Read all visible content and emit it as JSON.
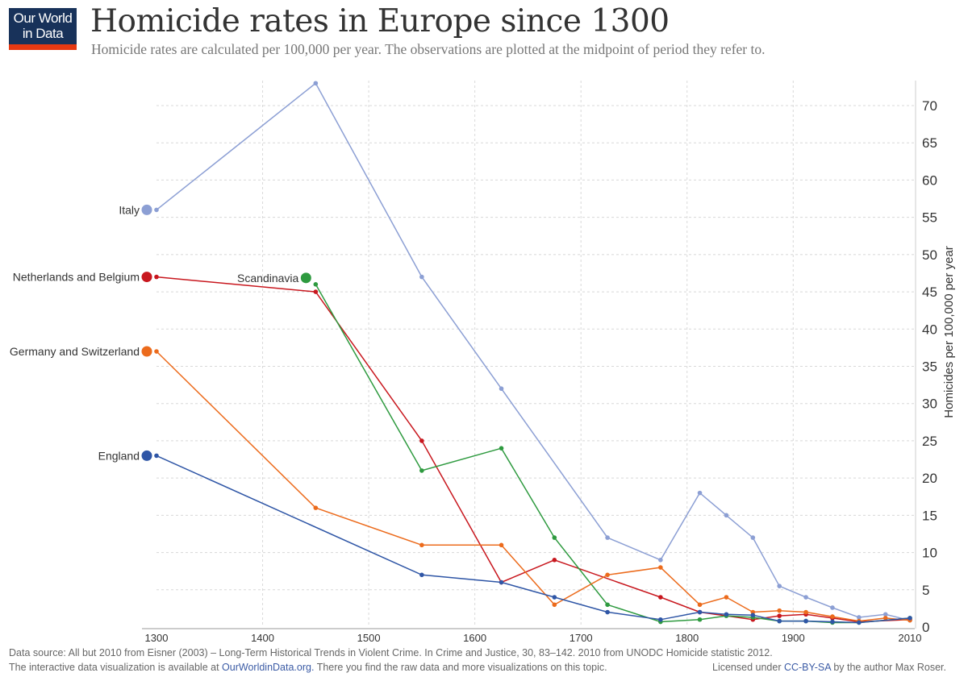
{
  "logo": {
    "line1": "Our World",
    "line2": "in Data"
  },
  "header": {
    "title": "Homicide rates in Europe since 1300",
    "subtitle": "Homicide rates are calculated per 100,000 per year. The observations are plotted at the midpoint of period they refer to."
  },
  "footer": {
    "source": "Data source: All but 2010 from Eisner (2003) – Long-Term Historical Trends in Violent Crime. In Crime and Justice, 30, 83–142. 2010 from UNODC Homicide statistic 2012.",
    "interactive_prefix": "The interactive data visualization is available at ",
    "interactive_link": "OurWorldinData.org.",
    "interactive_suffix": " There you find the raw data and more visualizations on this topic.",
    "license_prefix": "Licensed under ",
    "license_link": "CC-BY-SA",
    "license_suffix": " by the author Max Roser."
  },
  "chart_data": {
    "type": "line",
    "title": "Homicide rates in Europe since 1300",
    "xlabel": "",
    "ylabel": "Homicides per 100,000 per year",
    "xlim": [
      1300,
      2010
    ],
    "ylim": [
      0,
      70
    ],
    "x_ticks": [
      1300,
      1400,
      1500,
      1600,
      1700,
      1800,
      1900,
      2010
    ],
    "y_ticks": [
      0,
      5,
      10,
      15,
      20,
      25,
      30,
      35,
      40,
      45,
      50,
      55,
      60,
      65,
      70
    ],
    "y_axis_side": "right",
    "grid": true,
    "legend": "inline labels at series start",
    "series": [
      {
        "name": "Italy",
        "color": "#8c9fd4",
        "x": [
          1300,
          1450,
          1550,
          1625,
          1725,
          1775,
          1812,
          1837,
          1862,
          1887,
          1912,
          1937,
          1962,
          1987,
          2010
        ],
        "y": [
          56,
          73,
          47,
          32,
          12,
          9,
          18,
          15,
          12,
          5.5,
          4,
          2.6,
          1.3,
          1.7,
          0.9
        ]
      },
      {
        "name": "Netherlands and Belgium",
        "color": "#c8171e",
        "x": [
          1300,
          1450,
          1550,
          1625,
          1675,
          1775,
          1812,
          1862,
          1887,
          1912,
          1937,
          1962,
          2010
        ],
        "y": [
          47,
          45,
          25,
          6,
          9,
          4,
          2,
          1,
          1.5,
          1.7,
          1.2,
          0.7,
          1.0
        ]
      },
      {
        "name": "Scandinavia",
        "color": "#2e9a3f",
        "x": [
          1450,
          1550,
          1625,
          1675,
          1725,
          1775,
          1812,
          1837,
          1862,
          1887,
          1912,
          1937,
          1962,
          2010
        ],
        "y": [
          46,
          21,
          24,
          12,
          3,
          0.7,
          1.0,
          1.5,
          1.3,
          0.8,
          0.8,
          0.6,
          0.6,
          1.2
        ]
      },
      {
        "name": "Germany and Switzerland",
        "color": "#ec6b1c",
        "x": [
          1300,
          1450,
          1550,
          1625,
          1675,
          1725,
          1775,
          1812,
          1837,
          1862,
          1887,
          1912,
          1937,
          1962,
          1987,
          2010
        ],
        "y": [
          37,
          16,
          11,
          11,
          3,
          7,
          8,
          3,
          4,
          2,
          2.2,
          2,
          1.4,
          0.8,
          1.2,
          0.9
        ]
      },
      {
        "name": "England",
        "color": "#2f56a6",
        "x": [
          1300,
          1550,
          1625,
          1675,
          1725,
          1775,
          1812,
          1837,
          1862,
          1887,
          1912,
          1937,
          1962,
          2010
        ],
        "y": [
          23,
          7,
          6,
          4,
          2,
          1,
          2,
          1.7,
          1.6,
          0.8,
          0.8,
          0.7,
          0.6,
          1.2
        ]
      }
    ]
  }
}
